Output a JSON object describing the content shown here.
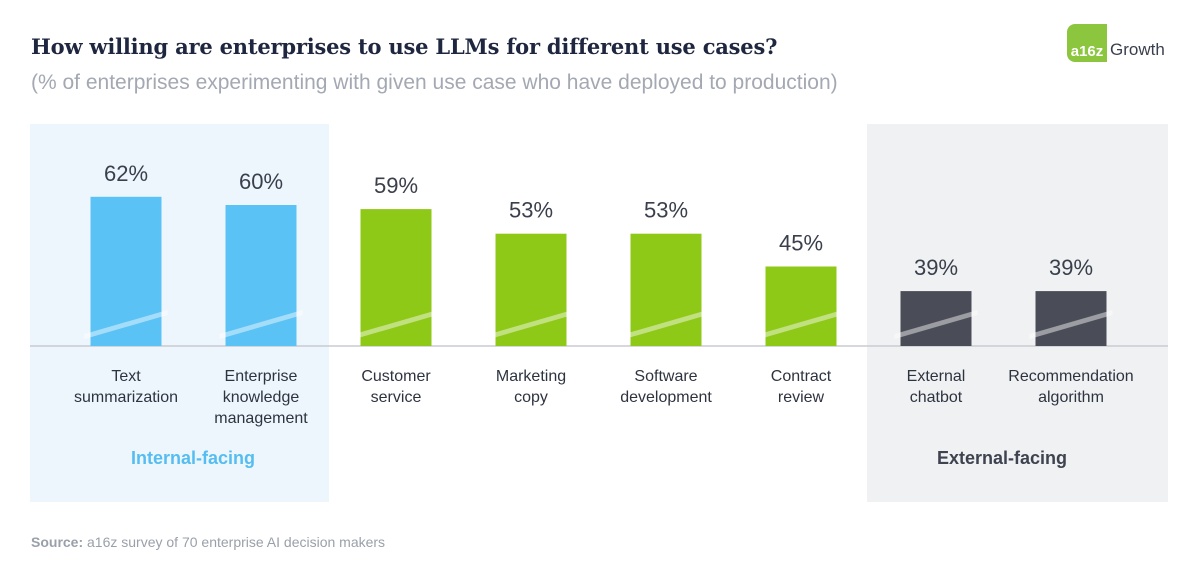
{
  "title": "How willing are enterprises to use LLMs for different use cases?",
  "subtitle": "(% of enterprises experimenting with given use case who have deployed to production)",
  "logo": {
    "badge": "a16z",
    "text": "Growth"
  },
  "source": {
    "label": "Source:",
    "text": "a16z survey of 70 enterprise AI decision makers"
  },
  "colors": {
    "internal": "#5ac2f5",
    "middle": "#8fc918",
    "external": "#4a4d57",
    "internal_bg": "#eef6fd",
    "external_bg": "#f0f1f3",
    "internal_label": "#55bdf0",
    "external_label": "#3f4350"
  },
  "chart_data": {
    "type": "bar",
    "title": "How willing are enterprises to use LLMs for different use cases?",
    "subtitle": "(% of enterprises experimenting with given use case who have deployed to production)",
    "categories": [
      [
        "Text",
        "summarization"
      ],
      [
        "Enterprise",
        "knowledge",
        "management"
      ],
      [
        "Customer",
        "service"
      ],
      [
        "Marketing",
        "copy"
      ],
      [
        "Software",
        "development"
      ],
      [
        "Contract",
        "review"
      ],
      [
        "External",
        "chatbot"
      ],
      [
        "Recommendation",
        "algorithm"
      ]
    ],
    "values": [
      62,
      60,
      59,
      53,
      53,
      45,
      39,
      39
    ],
    "value_labels": [
      "62%",
      "60%",
      "59%",
      "53%",
      "53%",
      "45%",
      "39%",
      "39%"
    ],
    "groups": [
      "internal",
      "internal",
      "middle",
      "middle",
      "middle",
      "middle",
      "external",
      "external"
    ],
    "group_labels": {
      "internal": "Internal-facing",
      "external": "External-facing"
    },
    "axis_break": true,
    "grid": false
  }
}
